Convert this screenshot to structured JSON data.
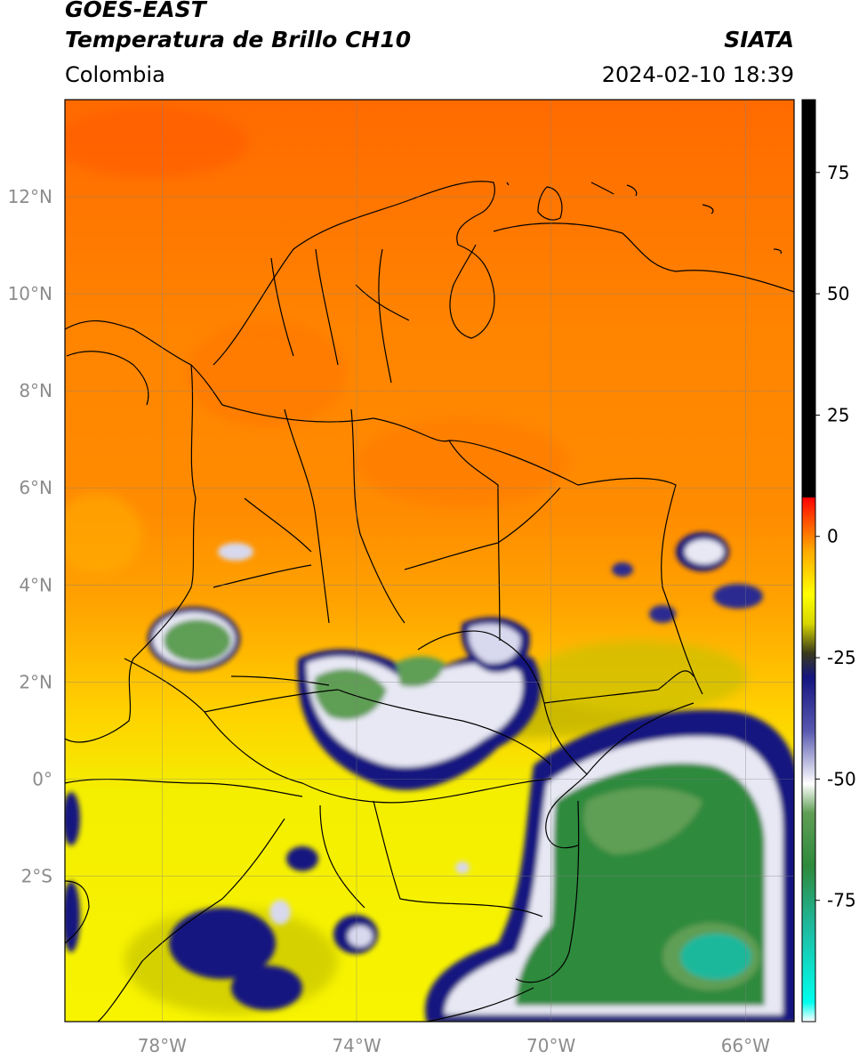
{
  "header": {
    "title_line1": "GOES-EAST",
    "title_line2": "Temperatura de Brillo CH10",
    "brand": "SIATA",
    "region": "Colombia",
    "timestamp": "2024-02-10 18:39"
  },
  "map": {
    "lon_range": [
      -80.0,
      -65.0
    ],
    "lat_range": [
      -5.0,
      14.0
    ],
    "lat_ticks": [
      {
        "value": 12,
        "label": "12°N"
      },
      {
        "value": 10,
        "label": "10°N"
      },
      {
        "value": 8,
        "label": "8°N"
      },
      {
        "value": 6,
        "label": "6°N"
      },
      {
        "value": 4,
        "label": "4°N"
      },
      {
        "value": 2,
        "label": "2°N"
      },
      {
        "value": 0,
        "label": "0°"
      },
      {
        "value": -2,
        "label": "2°S"
      }
    ],
    "lon_ticks": [
      {
        "value": -78,
        "label": "78°W"
      },
      {
        "value": -74,
        "label": "74°W"
      },
      {
        "value": -70,
        "label": "70°W"
      },
      {
        "value": -66,
        "label": "66°W"
      }
    ],
    "gridlines": true
  },
  "colorbar": {
    "range": [
      -100,
      90
    ],
    "ticks": [
      {
        "value": 75,
        "label": "75"
      },
      {
        "value": 50,
        "label": "50"
      },
      {
        "value": 25,
        "label": "25"
      },
      {
        "value": 0,
        "label": "0"
      },
      {
        "value": -25,
        "label": "-25"
      },
      {
        "value": -50,
        "label": "-50"
      },
      {
        "value": -75,
        "label": "-75"
      }
    ],
    "stops": [
      {
        "value": -100,
        "color": "#ffffff"
      },
      {
        "value": -96,
        "color": "#00ffee"
      },
      {
        "value": -80,
        "color": "#1fb89c"
      },
      {
        "value": -68,
        "color": "#2e8a3c"
      },
      {
        "value": -57,
        "color": "#5f9e55"
      },
      {
        "value": -51,
        "color": "#ffffff"
      },
      {
        "value": -40,
        "color": "#5858b0"
      },
      {
        "value": -29,
        "color": "#141480"
      },
      {
        "value": -24,
        "color": "#3a3a1a"
      },
      {
        "value": -18,
        "color": "#d6d600"
      },
      {
        "value": -12,
        "color": "#ffff00"
      },
      {
        "value": -3,
        "color": "#ffaa00"
      },
      {
        "value": 4,
        "color": "#ff4400"
      },
      {
        "value": 8,
        "color": "#ff0000"
      },
      {
        "value": 8.01,
        "color": "#000000"
      },
      {
        "value": 90,
        "color": "#000000"
      }
    ]
  }
}
